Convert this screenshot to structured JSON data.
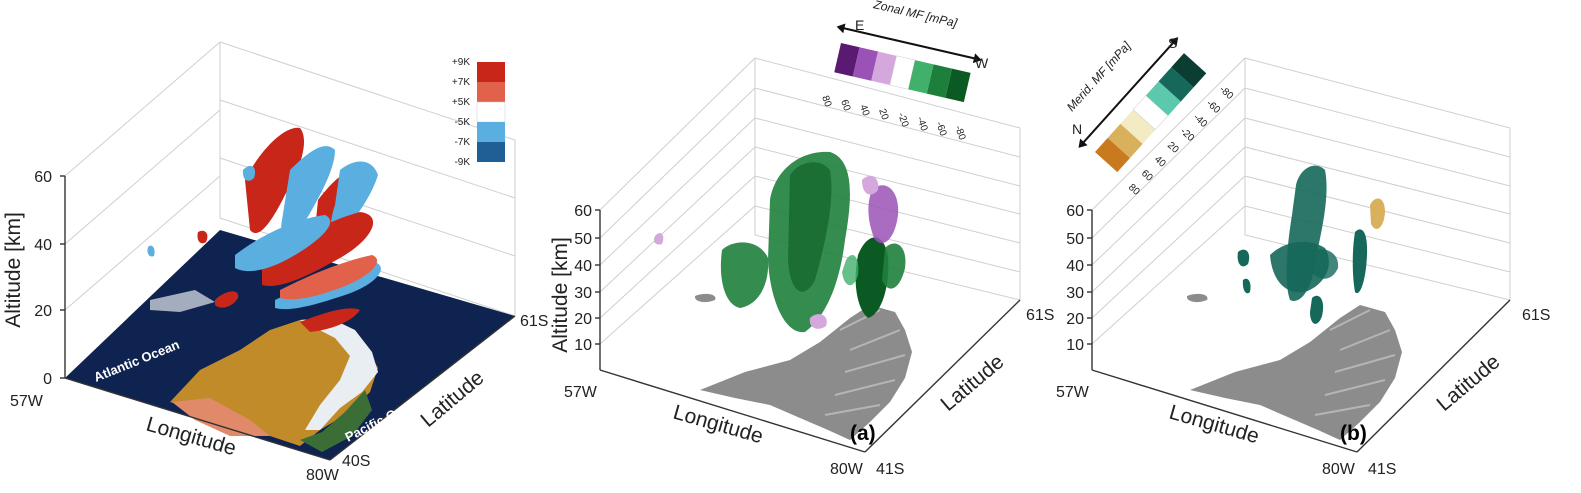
{
  "colors": {
    "red_dark": "#c9261a",
    "red_light": "#e2614a",
    "blue_light": "#5aaee0",
    "blue_dark": "#1f5f96",
    "purple_dark": "#5a1a72",
    "purple_mid": "#9a52b6",
    "purple_light": "#d4a8dd",
    "green_light": "#41b06b",
    "green_mid": "#1e7f3c",
    "green_dark": "#0c5a23",
    "brown_dark": "#c97a1f",
    "brown_mid": "#d9b05c",
    "brown_light": "#f3ebc3",
    "teal_light": "#5cc8ad",
    "teal_mid": "#15685a",
    "teal_dark": "#0b3d33",
    "terrain": "#8a8a8a",
    "ocean": "#0f2350",
    "land": "#c28b2a"
  },
  "panels": [
    {
      "id": "temperature",
      "ylabel": "Altitude [km]",
      "xlabel": "Longitude",
      "zlabel": "Latitude",
      "z_ticks": [
        "60",
        "40",
        "20",
        "0"
      ],
      "lon_start": "57W",
      "lon_end": "80W",
      "lat_start": "40S",
      "lat_end": "61S",
      "ocean_labels": [
        "Atlantic Ocean",
        "Pacific Ocean"
      ],
      "legend_ticks": [
        "+9K",
        "+7K",
        "+5K",
        "-5K",
        "-7K",
        "-9K"
      ]
    },
    {
      "id": "zonal",
      "panel_label": "(a)",
      "ylabel": "Altitude [km]",
      "xlabel": "Longitude",
      "zlabel": "Latitude",
      "z_ticks": [
        "60",
        "50",
        "40",
        "30",
        "20",
        "10"
      ],
      "lon_start": "57W",
      "lon_end": "80W",
      "lat_start": "41S",
      "lat_end": "61S",
      "legend_title": "Zonal MF [mPa]",
      "legend_dir_left": "E",
      "legend_dir_right": "W",
      "legend_ticks": [
        "80",
        "60",
        "40",
        "20",
        "-20",
        "-40",
        "-60",
        "-80"
      ]
    },
    {
      "id": "meridional",
      "panel_label": "(b)",
      "ylabel": "",
      "xlabel": "Longitude",
      "zlabel": "Latitude",
      "z_ticks": [
        "60",
        "50",
        "40",
        "30",
        "20",
        "10"
      ],
      "lon_start": "57W",
      "lon_end": "80W",
      "lat_start": "41S",
      "lat_end": "61S",
      "legend_title": "Merid. MF [mPa]",
      "legend_dir_left": "N",
      "legend_dir_right": "S",
      "legend_ticks": [
        "80",
        "60",
        "40",
        "20",
        "-20",
        "-40",
        "-60",
        "-80"
      ]
    }
  ]
}
